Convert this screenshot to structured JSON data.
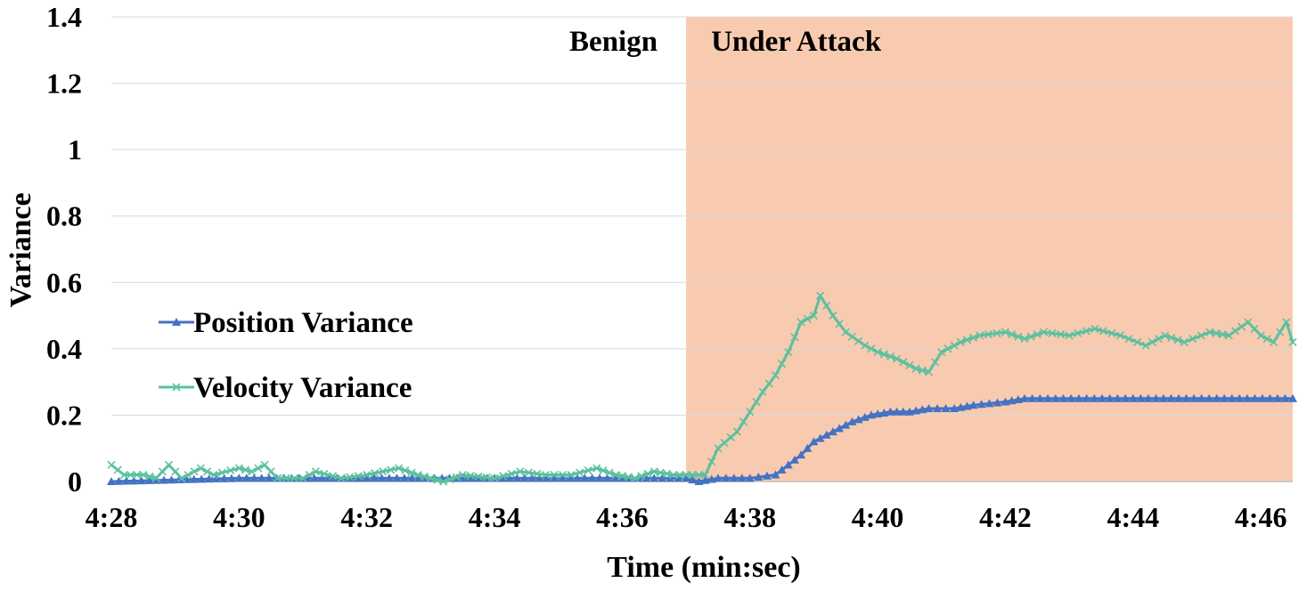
{
  "chart_data": {
    "type": "line",
    "title": "",
    "xlabel": "Time (min:sec)",
    "ylabel": "Variance",
    "xlim": [
      "4:28",
      "4:46.5"
    ],
    "ylim": [
      0,
      1.4
    ],
    "x_ticks": [
      "4:28",
      "4:30",
      "4:32",
      "4:34",
      "4:36",
      "4:38",
      "4:40",
      "4:42",
      "4:44",
      "4:46"
    ],
    "y_ticks": [
      "0",
      "0.2",
      "0.4",
      "0.6",
      "0.8",
      "1",
      "1.2",
      "1.4"
    ],
    "grid": "horizontal",
    "legend_position": "left-middle",
    "regions": [
      {
        "label": "Benign",
        "from": "4:28",
        "to": "4:37",
        "color": "#ffffff"
      },
      {
        "label": "Under Attack",
        "from": "4:37",
        "to": "4:46.5",
        "color": "#f8cbb0"
      }
    ],
    "series": [
      {
        "name": "Position Variance",
        "color": "#4472c4",
        "marker": "triangle",
        "points": [
          [
            "4:28.0",
            0.0
          ],
          [
            "4:30.0",
            0.01
          ],
          [
            "4:32.0",
            0.01
          ],
          [
            "4:34.0",
            0.01
          ],
          [
            "4:36.0",
            0.01
          ],
          [
            "4:37.0",
            0.01
          ],
          [
            "4:37.2",
            0.0
          ],
          [
            "4:37.5",
            0.01
          ],
          [
            "4:38.0",
            0.01
          ],
          [
            "4:38.4",
            0.02
          ],
          [
            "4:38.6",
            0.05
          ],
          [
            "4:38.8",
            0.08
          ],
          [
            "4:39.0",
            0.12
          ],
          [
            "4:39.3",
            0.15
          ],
          [
            "4:39.6",
            0.18
          ],
          [
            "4:39.9",
            0.2
          ],
          [
            "4:40.2",
            0.21
          ],
          [
            "4:40.5",
            0.21
          ],
          [
            "4:40.8",
            0.22
          ],
          [
            "4:41.2",
            0.22
          ],
          [
            "4:41.5",
            0.23
          ],
          [
            "4:42.0",
            0.24
          ],
          [
            "4:42.3",
            0.25
          ],
          [
            "4:44.0",
            0.25
          ],
          [
            "4:46.5",
            0.25
          ]
        ]
      },
      {
        "name": "Velocity Variance",
        "color": "#5cc09e",
        "marker": "x",
        "points": [
          [
            "4:28.0",
            0.05
          ],
          [
            "4:28.2",
            0.02
          ],
          [
            "4:28.5",
            0.02
          ],
          [
            "4:28.7",
            0.01
          ],
          [
            "4:28.9",
            0.05
          ],
          [
            "4:29.1",
            0.01
          ],
          [
            "4:29.4",
            0.04
          ],
          [
            "4:29.6",
            0.02
          ],
          [
            "4:30.0",
            0.04
          ],
          [
            "4:30.2",
            0.03
          ],
          [
            "4:30.4",
            0.05
          ],
          [
            "4:30.6",
            0.01
          ],
          [
            "4:31.0",
            0.01
          ],
          [
            "4:31.2",
            0.03
          ],
          [
            "4:31.6",
            0.01
          ],
          [
            "4:32.0",
            0.02
          ],
          [
            "4:32.5",
            0.04
          ],
          [
            "4:32.8",
            0.02
          ],
          [
            "4:33.0",
            0.01
          ],
          [
            "4:33.2",
            0.0
          ],
          [
            "4:33.5",
            0.02
          ],
          [
            "4:34.0",
            0.01
          ],
          [
            "4:34.4",
            0.03
          ],
          [
            "4:34.8",
            0.02
          ],
          [
            "4:35.2",
            0.02
          ],
          [
            "4:35.6",
            0.04
          ],
          [
            "4:35.9",
            0.02
          ],
          [
            "4:36.2",
            0.01
          ],
          [
            "4:36.5",
            0.03
          ],
          [
            "4:36.8",
            0.02
          ],
          [
            "4:37.0",
            0.02
          ],
          [
            "4:37.3",
            0.02
          ],
          [
            "4:37.5",
            0.1
          ],
          [
            "4:37.8",
            0.15
          ],
          [
            "4:38.0",
            0.21
          ],
          [
            "4:38.2",
            0.27
          ],
          [
            "4:38.4",
            0.32
          ],
          [
            "4:38.6",
            0.39
          ],
          [
            "4:38.8",
            0.48
          ],
          [
            "4:39.0",
            0.5
          ],
          [
            "4:39.1",
            0.56
          ],
          [
            "4:39.3",
            0.5
          ],
          [
            "4:39.5",
            0.45
          ],
          [
            "4:39.8",
            0.41
          ],
          [
            "4:40.0",
            0.39
          ],
          [
            "4:40.3",
            0.37
          ],
          [
            "4:40.6",
            0.34
          ],
          [
            "4:40.8",
            0.33
          ],
          [
            "4:41.0",
            0.39
          ],
          [
            "4:41.3",
            0.42
          ],
          [
            "4:41.6",
            0.44
          ],
          [
            "4:42.0",
            0.45
          ],
          [
            "4:42.3",
            0.43
          ],
          [
            "4:42.6",
            0.45
          ],
          [
            "4:43.0",
            0.44
          ],
          [
            "4:43.4",
            0.46
          ],
          [
            "4:43.8",
            0.44
          ],
          [
            "4:44.2",
            0.41
          ],
          [
            "4:44.5",
            0.44
          ],
          [
            "4:44.8",
            0.42
          ],
          [
            "4:45.2",
            0.45
          ],
          [
            "4:45.5",
            0.44
          ],
          [
            "4:45.8",
            0.48
          ],
          [
            "4:46.0",
            0.44
          ],
          [
            "4:46.2",
            0.42
          ],
          [
            "4:46.4",
            0.48
          ],
          [
            "4:46.5",
            0.42
          ]
        ]
      }
    ]
  }
}
